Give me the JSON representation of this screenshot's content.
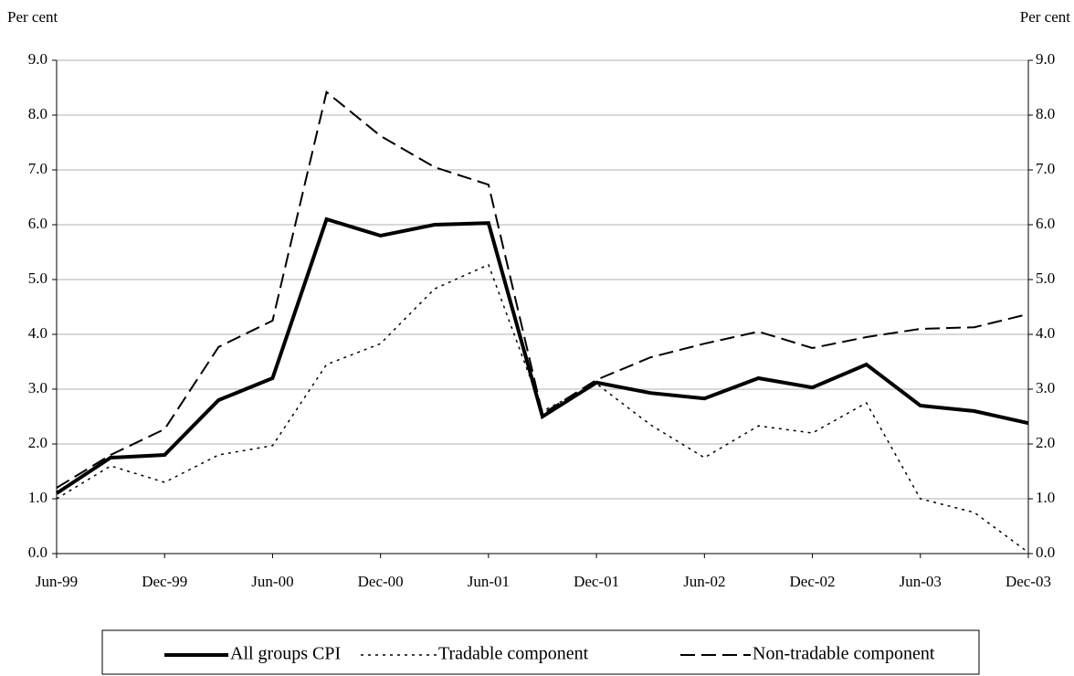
{
  "chart_data": {
    "type": "line",
    "y_label": "Per cent",
    "y2_label": "Per cent",
    "categories": [
      "Jun-99",
      null,
      "Dec-99",
      null,
      "Jun-00",
      null,
      "Dec-00",
      null,
      "Jun-01",
      null,
      "Dec-01",
      null,
      "Jun-02",
      null,
      "Dec-02",
      null,
      "Jun-03",
      null,
      "Dec-03"
    ],
    "series": [
      {
        "name": "All groups CPI",
        "color": "#000000",
        "dash": "solid",
        "width": 4,
        "values": [
          1.1,
          1.75,
          1.8,
          2.8,
          3.2,
          6.1,
          5.8,
          6.0,
          6.03,
          2.5,
          3.12,
          2.93,
          2.83,
          3.2,
          3.03,
          3.45,
          2.7,
          2.6,
          2.38
        ]
      },
      {
        "name": "Tradable component",
        "color": "#000000",
        "dash": "dotted",
        "width": 1.5,
        "values": [
          1.0,
          1.6,
          1.3,
          1.8,
          1.97,
          3.45,
          3.83,
          4.83,
          5.27,
          2.6,
          3.1,
          2.35,
          1.75,
          2.33,
          2.2,
          2.75,
          1.0,
          0.75,
          0.02
        ]
      },
      {
        "name": "Non-tradable component",
        "color": "#000000",
        "dash": "dashed",
        "width": 2,
        "values": [
          1.2,
          1.8,
          2.27,
          3.77,
          4.25,
          8.42,
          7.62,
          7.05,
          6.73,
          2.55,
          3.17,
          3.58,
          3.83,
          4.05,
          3.75,
          3.95,
          4.1,
          4.13,
          4.37
        ]
      }
    ],
    "ylim": [
      0,
      9
    ],
    "yticks": [
      {
        "value": 0,
        "label": "0.0"
      },
      {
        "value": 1,
        "label": "1.0"
      },
      {
        "value": 2,
        "label": "2.0"
      },
      {
        "value": 3,
        "label": "3.0"
      },
      {
        "value": 4,
        "label": "4.0"
      },
      {
        "value": 5,
        "label": "5.0"
      },
      {
        "value": 6,
        "label": "6.0"
      },
      {
        "value": 7,
        "label": "7.0"
      },
      {
        "value": 8,
        "label": "8.0"
      },
      {
        "value": 9,
        "label": "9.0"
      }
    ],
    "y2lim": [
      0,
      9
    ],
    "y2ticks": [
      {
        "value": 0,
        "label": "0.0"
      },
      {
        "value": 1,
        "label": "1.0"
      },
      {
        "value": 2,
        "label": "2.0"
      },
      {
        "value": 3,
        "label": "3.0"
      },
      {
        "value": 4,
        "label": "4.0"
      },
      {
        "value": 5,
        "label": "5.0"
      },
      {
        "value": 6,
        "label": "6.0"
      },
      {
        "value": 7,
        "label": "7.0"
      },
      {
        "value": 8,
        "label": "8.0"
      },
      {
        "value": 9,
        "label": "9.0"
      }
    ],
    "grid": true,
    "legend": "bottom"
  }
}
